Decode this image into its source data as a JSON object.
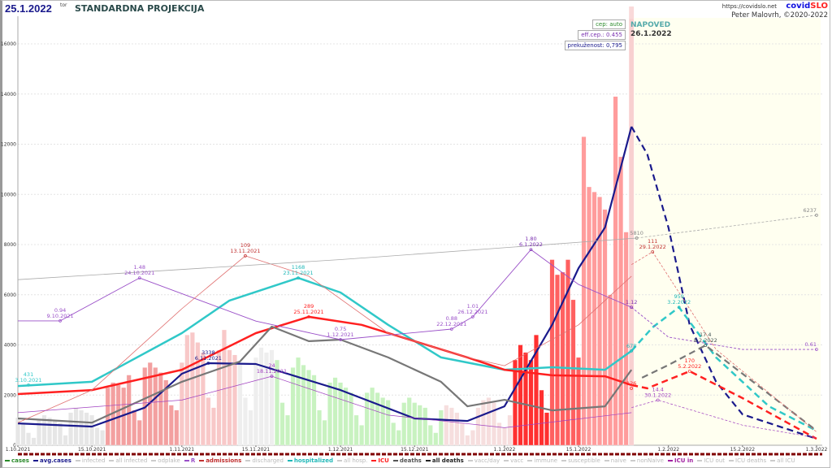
{
  "header": {
    "date": "25.1.2022",
    "date_suffix": "tor",
    "title": "STANDARDNA PROJEKCIJA",
    "url": "https://covidslo.net",
    "brand_a": "covid",
    "brand_b": "SLO",
    "author": "Peter Malovrh, ©2020-2022",
    "forecast_title": "NAPOVED",
    "forecast_date": "26.1.2022"
  },
  "params": {
    "cep": "cep: auto",
    "eff_cep": "eff.cep.: 0.455",
    "prekuzenost": "prekuženost: 0,795"
  },
  "colors": {
    "forecast_bg": "#fffff0",
    "cases_band": "#f8d0d0",
    "brand_a": "#1010e0",
    "brand_b": "#ff2020"
  },
  "chart_data": {
    "type": "bar+line",
    "x_start": "1.10.2021",
    "x_end": "1.3.2022",
    "forecast_start": "26.1.2022",
    "ylim": [
      0,
      17000
    ],
    "yticks": [
      0,
      2000,
      4000,
      6000,
      8000,
      10000,
      12000,
      14000,
      16000
    ],
    "xticks": [
      "1.10.2021",
      "15.10.2021",
      "1.11.2021",
      "15.11.2021",
      "1.12.2021",
      "15.12.2021",
      "1.1.2022",
      "15.1.2022",
      "1.2.2022",
      "15.2.2022",
      "1.3.2022"
    ],
    "grid": true,
    "cases": {
      "start": "1.10.2021",
      "values": [
        1100,
        900,
        500,
        300,
        1000,
        1200,
        1100,
        1000,
        900,
        400,
        1300,
        1500,
        1400,
        1300,
        1200,
        700,
        600,
        2300,
        2500,
        2400,
        2300,
        2800,
        1400,
        1000,
        3100,
        3300,
        3100,
        2900,
        2600,
        1600,
        1400,
        3300,
        4400,
        4500,
        4100,
        3700,
        1900,
        1500,
        3800,
        4600,
        3800,
        3600,
        3300,
        1900,
        1400,
        3500,
        3900,
        3700,
        3800,
        3400,
        1700,
        1200,
        3100,
        3500,
        3200,
        3000,
        2800,
        1400,
        1000,
        2500,
        2700,
        2500,
        2300,
        2100,
        1200,
        800,
        2100,
        2300,
        2100,
        1900,
        1800,
        900,
        600,
        1700,
        1900,
        1700,
        1600,
        1500,
        800,
        500,
        1400,
        1600,
        1500,
        1300,
        900,
        400,
        600,
        1500,
        1800,
        1900,
        1700,
        900,
        700,
        1200,
        3400,
        4000,
        3700,
        3400,
        4400,
        2200,
        1300,
        7400,
        6800,
        6900,
        7400,
        5800,
        3500,
        12300,
        10300,
        10100,
        9900,
        9400,
        6000,
        13900,
        11500,
        8500,
        17000
      ],
      "color_segments": [
        {
          "from": "1.10.2021",
          "color": "#e6e6e6"
        },
        {
          "from": "18.10.2021",
          "color": "#f3a0a0"
        },
        {
          "from": "1.11.2021",
          "color": "#f8c8c8"
        },
        {
          "from": "12.11.2021",
          "color": "#eeeeee"
        },
        {
          "from": "19.11.2021",
          "color": "#c8f2c0"
        },
        {
          "from": "21.12.2021",
          "color": "#f6dede"
        },
        {
          "from": "3.1.2022",
          "color": "#ff3030"
        },
        {
          "from": "10.1.2022",
          "color": "#ff6060"
        },
        {
          "from": "16.1.2022",
          "color": "#ff9c9c"
        },
        {
          "from": "25.1.2022",
          "color": "#fbd0d0"
        }
      ]
    },
    "series": [
      {
        "name": "avg.cases",
        "color": "#1a1a8c",
        "width": 2.2,
        "points": [
          [
            "1.10.2021",
            870
          ],
          [
            "15.10.2021",
            745
          ],
          [
            "25.10.2021",
            1500
          ],
          [
            "1.11.2021",
            2850
          ],
          [
            "6.11.2021",
            3270
          ],
          [
            "15.11.2021",
            3240
          ],
          [
            "1.12.2021",
            2200
          ],
          [
            "15.12.2021",
            1070
          ],
          [
            "25.12.2021",
            970
          ],
          [
            "1.1.2022",
            1550
          ],
          [
            "10.1.2022",
            4800
          ],
          [
            "15.1.2022",
            7060
          ],
          [
            "20.1.2022",
            8680
          ],
          [
            "25.1.2022",
            12700
          ]
        ],
        "forecast": [
          [
            "25.1.2022",
            12700
          ],
          [
            "28.1.2022",
            11600
          ],
          [
            "1.2.2022",
            8680
          ],
          [
            "5.2.2022",
            4800
          ],
          [
            "10.2.2022",
            2530
          ],
          [
            "15.2.2022",
            1230
          ],
          [
            "1.3.2022",
            260
          ]
        ]
      },
      {
        "name": "hospitalized",
        "color": "#30c8c8",
        "width": 2.5,
        "points": [
          [
            "1.10.2021",
            2360
          ],
          [
            "15.10.2021",
            2530
          ],
          [
            "1.11.2021",
            4470
          ],
          [
            "10.11.2021",
            5770
          ],
          [
            "23.11.2021",
            6670
          ],
          [
            "1.12.2021",
            6090
          ],
          [
            "10.12.2021",
            4800
          ],
          [
            "20.12.2021",
            3500
          ],
          [
            "1.1.2022",
            3010
          ],
          [
            "10.1.2022",
            3110
          ],
          [
            "20.1.2022",
            3010
          ],
          [
            "25.1.2022",
            3760
          ]
        ],
        "forecast": [
          [
            "25.1.2022",
            3760
          ],
          [
            "29.1.2022",
            4700
          ],
          [
            "3.2.2022",
            5500
          ],
          [
            "10.2.2022",
            3500
          ],
          [
            "20.2.2022",
            1550
          ],
          [
            "1.3.2022",
            580
          ]
        ]
      },
      {
        "name": "ICU",
        "color": "#ff2020",
        "width": 2.5,
        "points": [
          [
            "1.10.2021",
            2040
          ],
          [
            "15.10.2021",
            2200
          ],
          [
            "1.11.2021",
            3010
          ],
          [
            "15.11.2021",
            4470
          ],
          [
            "25.11.2021",
            5120
          ],
          [
            "5.12.2021",
            4800
          ],
          [
            "15.12.2021",
            4150
          ],
          [
            "25.12.2021",
            3500
          ],
          [
            "1.1.2022",
            3010
          ],
          [
            "10.1.2022",
            2790
          ],
          [
            "20.1.2022",
            2750
          ],
          [
            "25.1.2022",
            2400
          ]
        ],
        "forecast": [
          [
            "25.1.2022",
            2400
          ],
          [
            "28.1.2022",
            2270
          ],
          [
            "5.2.2022",
            2950
          ],
          [
            "15.2.2022",
            1880
          ],
          [
            "1.3.2022",
            260
          ]
        ]
      },
      {
        "name": "deaths",
        "color": "#777777",
        "width": 2.2,
        "points": [
          [
            "1.10.2021",
            1070
          ],
          [
            "15.10.2021",
            900
          ],
          [
            "1.11.2021",
            2530
          ],
          [
            "12.11.2021",
            3340
          ],
          [
            "18.11.2021",
            4730
          ],
          [
            "25.11.2021",
            4150
          ],
          [
            "1.12.2021",
            4210
          ],
          [
            "10.12.2021",
            3500
          ],
          [
            "20.12.2021",
            2530
          ],
          [
            "25.12.2021",
            1550
          ],
          [
            "1.1.2022",
            1810
          ],
          [
            "10.1.2022",
            1390
          ],
          [
            "20.1.2022",
            1550
          ],
          [
            "25.1.2022",
            3010
          ]
        ],
        "forecast": [
          [
            "27.1.2022",
            2690
          ],
          [
            "1.2.2022",
            3200
          ],
          [
            "8.2.2022",
            3980
          ],
          [
            "15.2.2022",
            2850
          ],
          [
            "1.3.2022",
            580
          ]
        ]
      },
      {
        "name": "R",
        "color": "#9a50c8",
        "width": 0.9,
        "points": [
          [
            "1.10.2021",
            4960
          ],
          [
            "9.10.2021",
            4960
          ],
          [
            "24.10.2021",
            6670
          ],
          [
            "15.11.2021",
            4950
          ],
          [
            "1.12.2021",
            4210
          ],
          [
            "22.12.2021",
            4630
          ],
          [
            "26.12.2021",
            5120
          ],
          [
            "6.1.2022",
            7800
          ],
          [
            "15.1.2022",
            6410
          ],
          [
            "25.1.2022",
            5500
          ]
        ],
        "forecast": [
          [
            "25.1.2022",
            5500
          ],
          [
            "1.2.2022",
            4310
          ],
          [
            "15.2.2022",
            3820
          ],
          [
            "1.3.2022",
            3820
          ]
        ]
      },
      {
        "name": "admissions",
        "color": "#e07070",
        "width": 0.8,
        "points": [
          [
            "1.10.2021",
            900
          ],
          [
            "15.10.2021",
            2200
          ],
          [
            "1.11.2021",
            5440
          ],
          [
            "13.11.2021",
            7550
          ],
          [
            "25.11.2021",
            6740
          ],
          [
            "10.12.2021",
            4470
          ],
          [
            "25.12.2021",
            3500
          ],
          [
            "1.1.2022",
            3170
          ],
          [
            "15.1.2022",
            4800
          ],
          [
            "25.1.2022",
            6740
          ]
        ],
        "forecast": [
          [
            "25.1.2022",
            7200
          ],
          [
            "29.1.2022",
            7710
          ],
          [
            "10.2.2022",
            3820
          ],
          [
            "1.3.2022",
            530
          ]
        ]
      },
      {
        "name": "ICU in",
        "color": "#a040c0",
        "width": 0.7,
        "points": [
          [
            "1.10.2021",
            1300
          ],
          [
            "1.11.2021",
            1800
          ],
          [
            "18.11.2021",
            2750
          ],
          [
            "10.12.2021",
            1200
          ],
          [
            "1.1.2022",
            700
          ],
          [
            "25.1.2022",
            1300
          ]
        ],
        "forecast": [
          [
            "25.1.2022",
            1500
          ],
          [
            "30.1.2022",
            1800
          ],
          [
            "15.2.2022",
            800
          ],
          [
            "1.3.2022",
            300
          ]
        ]
      },
      {
        "name": "immune",
        "color": "#aaaaaa",
        "width": 0.8,
        "points": [
          [
            "1.10.2021",
            6600
          ],
          [
            "1.12.2021",
            7400
          ],
          [
            "26.1.2022",
            8260
          ]
        ],
        "forecast": [
          [
            "26.1.2022",
            8260
          ],
          [
            "1.3.2022",
            9170
          ]
        ]
      }
    ],
    "annotations": [
      {
        "value": "431",
        "date": "3.10.2021",
        "at": [
          "3.10.2021",
          2400
        ],
        "color": "#30c8c8"
      },
      {
        "value": "0.94",
        "date": "9.10.2021",
        "at": [
          "9.10.2021",
          4960
        ],
        "color": "#9a50c8"
      },
      {
        "value": "1.48",
        "date": "24.10.2021",
        "at": [
          "24.10.2021",
          6670
        ],
        "color": "#9a50c8"
      },
      {
        "value": "109",
        "date": "13.11.2021",
        "at": [
          "13.11.2021",
          7550
        ],
        "color": "#c03030"
      },
      {
        "value": "1168",
        "date": "23.11.2021",
        "at": [
          "23.11.2021",
          6670
        ],
        "color": "#20b8b8"
      },
      {
        "value": "289",
        "date": "25.11.2021",
        "at": [
          "25.11.2021",
          5120
        ],
        "color": "#ff2020"
      },
      {
        "value": "0.75",
        "date": "1.12.2021",
        "at": [
          "1.12.2021",
          4210
        ],
        "color": "#9a50c8"
      },
      {
        "value": "3338",
        "date": "6.11.2021",
        "at": [
          "6.11.2021",
          3270
        ],
        "color": "#1a1a8c"
      },
      {
        "value": "24",
        "date": "18.11.2021",
        "at": [
          "18.11.2021",
          2750
        ],
        "color": "#a040c0"
      },
      {
        "value": "0.88",
        "date": "22.12.2021",
        "at": [
          "22.12.2021",
          4630
        ],
        "color": "#9a50c8"
      },
      {
        "value": "1.01",
        "date": "26.12.2021",
        "at": [
          "26.12.2021",
          5120
        ],
        "color": "#9a50c8"
      },
      {
        "value": "1.80",
        "date": "6.1.2022",
        "at": [
          "6.1.2022",
          7800
        ],
        "color": "#7a30b0"
      },
      {
        "value": "111",
        "date": "29.1.2022",
        "at": [
          "29.1.2022",
          7710
        ],
        "color": "#c03030"
      },
      {
        "value": "959",
        "date": "3.2.2022",
        "at": [
          "3.2.2022",
          5500
        ],
        "color": "#20b8b8"
      },
      {
        "value": "17.4",
        "date": "8.2.2022",
        "at": [
          "8.2.2022",
          3980
        ],
        "color": "#445555"
      },
      {
        "value": "170",
        "date": "5.2.2022",
        "at": [
          "5.2.2022",
          2950
        ],
        "color": "#ff2020"
      },
      {
        "value": "14.4",
        "date": "30.1.2022",
        "at": [
          "30.1.2022",
          1800
        ],
        "color": "#a040c0"
      },
      {
        "value": "1.12",
        "date": "",
        "at": [
          "25.1.2022",
          5500
        ],
        "color": "#7a30b0"
      },
      {
        "value": "678",
        "date": "",
        "at": [
          "25.1.2022",
          3760
        ],
        "color": "#20b8b8"
      },
      {
        "value": "126",
        "date": "",
        "at": [
          "25.1.2022",
          2270
        ],
        "color": "#ff2020"
      },
      {
        "value": "0.61",
        "date": "",
        "at": [
          "1.3.2022",
          3820
        ],
        "color": "#9a50c8"
      },
      {
        "value": "5810",
        "date": "",
        "at": [
          "26.1.2022",
          8260
        ],
        "color": "#888888"
      },
      {
        "value": "6237",
        "date": "",
        "at": [
          "1.3.2022",
          9170
        ],
        "color": "#888888"
      }
    ]
  },
  "legend": [
    {
      "label": "cases",
      "color": "#2a8a2a",
      "active": true
    },
    {
      "label": "avg.cases",
      "color": "#1a1a8c",
      "active": true
    },
    {
      "label": "infected",
      "color": "#ccc",
      "active": false
    },
    {
      "label": "all infected",
      "color": "#ccc",
      "active": false
    },
    {
      "label": "odplake",
      "color": "#ccc",
      "active": false
    },
    {
      "label": "R",
      "color": "#9a50c8",
      "active": true
    },
    {
      "label": "admissions",
      "color": "#c03030",
      "active": true
    },
    {
      "label": "discharged",
      "color": "#ccc",
      "active": false
    },
    {
      "label": "hospitalized",
      "color": "#20b8b8",
      "active": true
    },
    {
      "label": "all hosp.",
      "color": "#ccc",
      "active": false
    },
    {
      "label": "ICU",
      "color": "#ff2020",
      "active": true
    },
    {
      "label": "deaths",
      "color": "#555",
      "active": true
    },
    {
      "label": "all deaths",
      "color": "#222",
      "active": true
    },
    {
      "label": "vacc/day",
      "color": "#ccc",
      "active": false
    },
    {
      "label": "vacc",
      "color": "#ccc",
      "active": false
    },
    {
      "label": "immune",
      "color": "#ccc",
      "active": false
    },
    {
      "label": "susceptible",
      "color": "#ccc",
      "active": false
    },
    {
      "label": "naive",
      "color": "#ccc",
      "active": false
    },
    {
      "label": "nonNaive",
      "color": "#ccc",
      "active": false
    },
    {
      "label": "ICU in",
      "color": "#a020a0",
      "active": true
    },
    {
      "label": "ICU out",
      "color": "#ccc",
      "active": false
    },
    {
      "label": "ICU deaths",
      "color": "#ccc",
      "active": false
    },
    {
      "label": "all ICU",
      "color": "#ccc",
      "active": false
    }
  ]
}
